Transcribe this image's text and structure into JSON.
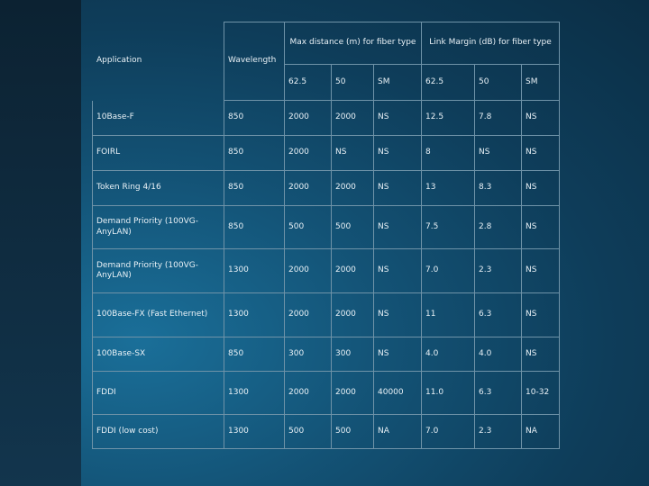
{
  "table": {
    "header": {
      "application": "Application",
      "wavelength": "Wavelength",
      "max_distance": "Max distance (m) for fiber type",
      "link_margin": "Link Margin (dB) for fiber type",
      "fiber_types": [
        "62.5",
        "50",
        "SM",
        "62.5",
        "50",
        "SM"
      ]
    },
    "rows": [
      {
        "app": "10Base-F",
        "wl": "850",
        "cells": [
          "2000",
          "2000",
          "NS",
          "12.5",
          "7.8",
          "NS"
        ]
      },
      {
        "app": "FOIRL",
        "wl": "850",
        "cells": [
          "2000",
          "NS",
          "NS",
          "8",
          "NS",
          "NS"
        ]
      },
      {
        "app": "Token Ring 4/16",
        "wl": "850",
        "cells": [
          "2000",
          "2000",
          "NS",
          "13",
          "8.3",
          "NS"
        ]
      },
      {
        "app": "Demand Priority (100VG-AnyLAN)",
        "wl": "850",
        "cells": [
          "500",
          "500",
          "NS",
          "7.5",
          "2.8",
          "NS"
        ]
      },
      {
        "app": "Demand Priority (100VG-AnyLAN)",
        "wl": "1300",
        "cells": [
          "2000",
          "2000",
          "NS",
          "7.0",
          "2.3",
          "NS"
        ]
      },
      {
        "app": "100Base-FX (Fast Ethernet)",
        "wl": "1300",
        "cells": [
          "2000",
          "2000",
          "NS",
          "11",
          "6.3",
          "NS"
        ]
      },
      {
        "app": "100Base-SX",
        "wl": "850",
        "cells": [
          "300",
          "300",
          "NS",
          "4.0",
          "4.0",
          "NS"
        ]
      },
      {
        "app": "FDDI",
        "wl": "1300",
        "cells": [
          "2000",
          "2000",
          "40000",
          "11.0",
          "6.3",
          "10-32"
        ]
      },
      {
        "app": "FDDI (low cost)",
        "wl": "1300",
        "cells": [
          "500",
          "500",
          "NA",
          "7.0",
          "2.3",
          "NA"
        ]
      }
    ]
  }
}
